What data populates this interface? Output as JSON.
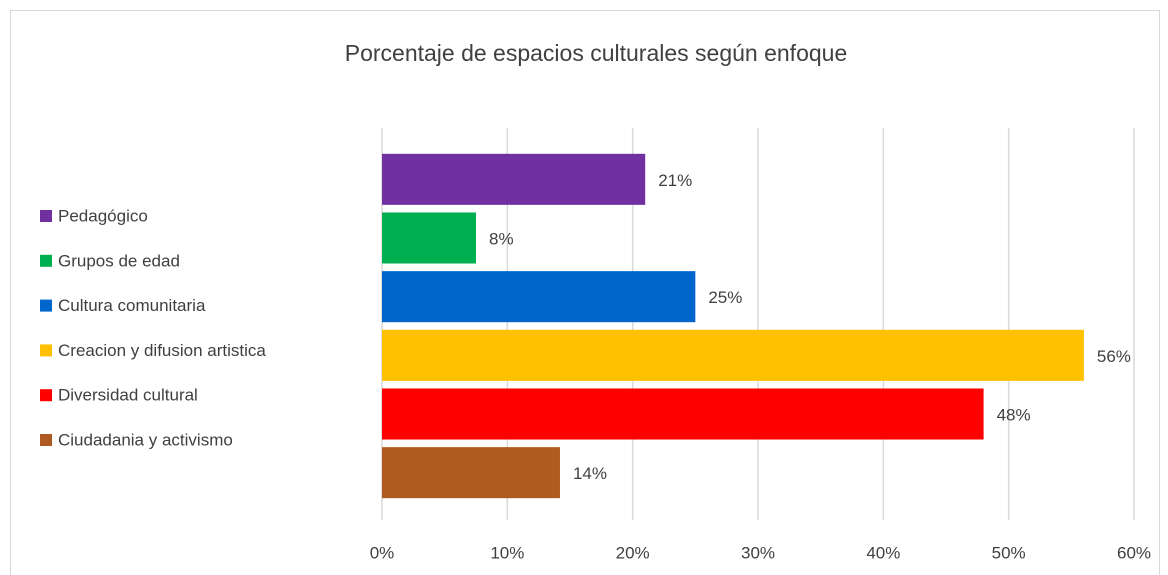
{
  "chart_data": {
    "type": "hbar",
    "title": "Porcentaje de espacios culturales según enfoque",
    "series": [
      {
        "name": "Pedagógico",
        "color": "#7030a0",
        "values": [
          21
        ],
        "value_labels": [
          "21%"
        ]
      },
      {
        "name": "Grupos de edad",
        "color": "#00b050",
        "values": [
          7.5
        ],
        "value_labels": [
          "8%"
        ]
      },
      {
        "name": "Cultura comunitaria",
        "color": "#0066cc",
        "values": [
          25
        ],
        "value_labels": [
          "25%"
        ]
      },
      {
        "name": "Creacion y difusion artistica",
        "color": "#ffc000",
        "values": [
          56
        ],
        "value_labels": [
          "56%"
        ]
      },
      {
        "name": "Diversidad cultural",
        "color": "#ff0000",
        "values": [
          48
        ],
        "value_labels": [
          "48%"
        ]
      },
      {
        "name": "Ciudadania y activismo",
        "color": "#ae5a21",
        "values": [
          14.2
        ],
        "value_labels": [
          "14%"
        ]
      }
    ],
    "xlim": [
      0,
      60
    ],
    "xticks": [
      {
        "value": 0,
        "label": "0%"
      },
      {
        "value": 10,
        "label": "10%"
      },
      {
        "value": 20,
        "label": "20%"
      },
      {
        "value": 30,
        "label": "30%"
      },
      {
        "value": 40,
        "label": "40%"
      },
      {
        "value": 50,
        "label": "50%"
      },
      {
        "value": 60,
        "label": "60%"
      }
    ],
    "grid": true,
    "legend": "left"
  }
}
